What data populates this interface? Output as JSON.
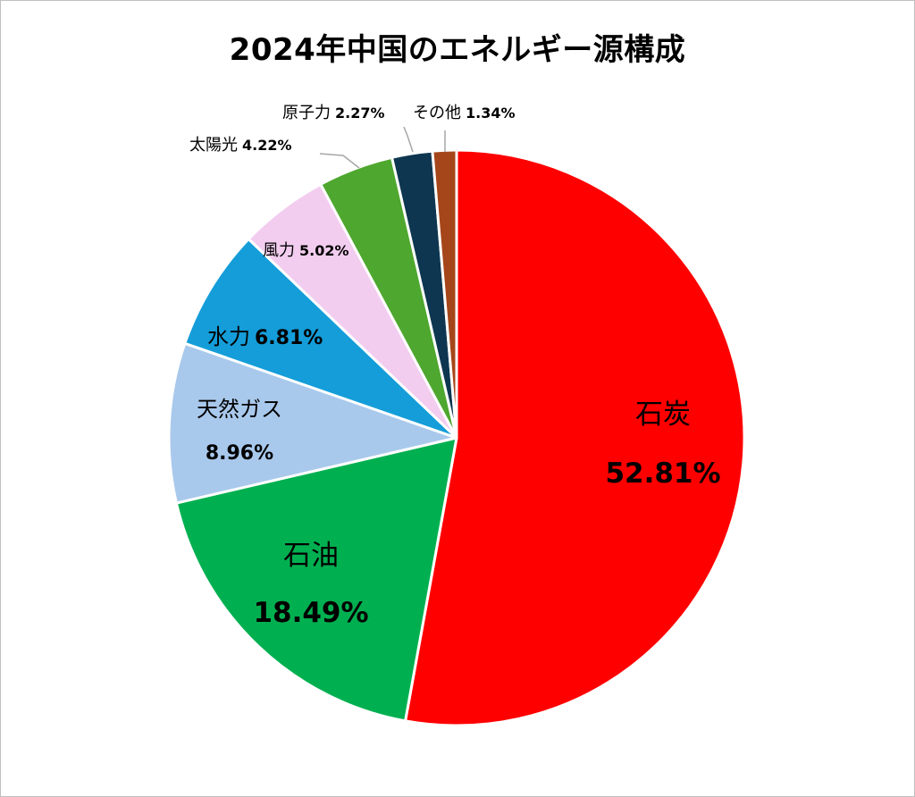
{
  "chart_data": {
    "type": "pie",
    "title": "2024年中国のエネルギー源構成",
    "slices": [
      {
        "name": "石炭",
        "value": 52.81,
        "label_pct": "52.81%",
        "color": "#ff0000"
      },
      {
        "name": "石油",
        "value": 18.49,
        "label_pct": "18.49%",
        "color": "#00b050"
      },
      {
        "name": "天然ガス",
        "value": 8.96,
        "label_pct": "8.96%",
        "color": "#a9c9ec"
      },
      {
        "name": "水力",
        "value": 6.81,
        "label_pct": "6.81%",
        "color": "#149dd9"
      },
      {
        "name": "風力",
        "value": 5.02,
        "label_pct": "5.02%",
        "color": "#f2cdef"
      },
      {
        "name": "太陽光",
        "value": 4.22,
        "label_pct": "4.22%",
        "color": "#4ea72e"
      },
      {
        "name": "原子力",
        "value": 2.27,
        "label_pct": "2.27%",
        "color": "#0e3650"
      },
      {
        "name": "その他",
        "value": 1.34,
        "label_pct": "1.34%",
        "color": "#a5461a"
      }
    ],
    "legend": "none",
    "slice_border_color": "#ffffff"
  }
}
